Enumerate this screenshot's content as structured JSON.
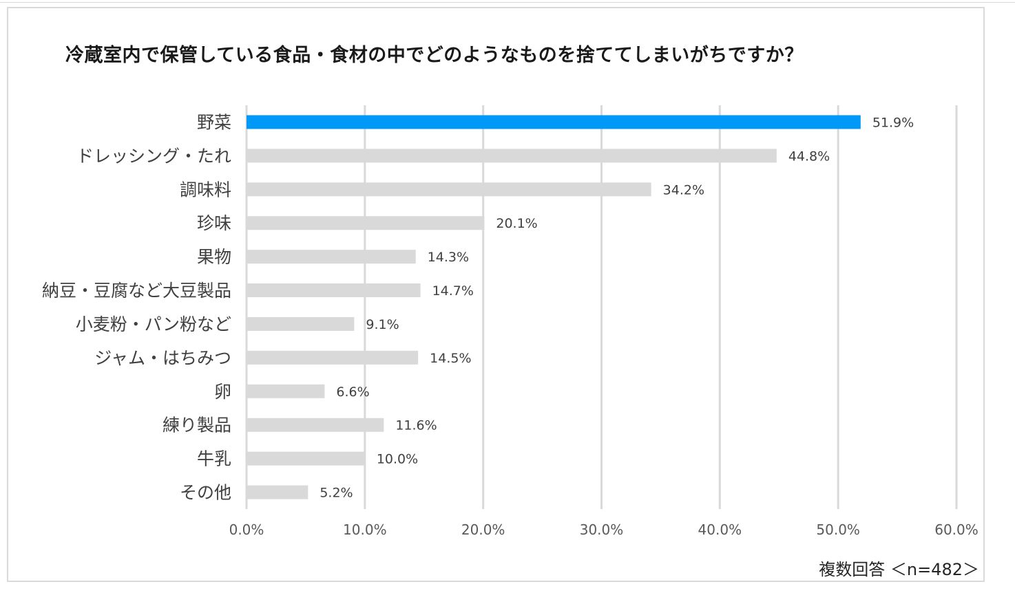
{
  "chart_data": {
    "type": "bar",
    "orientation": "horizontal",
    "title": "冷蔵室内で保管している食品・食材の中でどのようなものを捨ててしまいがちですか？",
    "categories": [
      "野菜",
      "ドレッシング・たれ",
      "調味料",
      "珍味",
      "果物",
      "納豆・豆腐など大豆製品",
      "小麦粉・パン粉など",
      "ジャム・はちみつ",
      "卵",
      "練り製品",
      "牛乳",
      "その他"
    ],
    "values": [
      51.9,
      44.8,
      34.2,
      20.1,
      14.3,
      14.7,
      9.1,
      14.5,
      6.6,
      11.6,
      10.0,
      5.2
    ],
    "value_labels": [
      "51.9%",
      "44.8%",
      "34.2%",
      "20.1%",
      "14.3%",
      "14.7%",
      "9.1%",
      "14.5%",
      "6.6%",
      "11.6%",
      "10.0%",
      "5.2%"
    ],
    "x_ticks": [
      "0.0%",
      "10.0%",
      "20.0%",
      "30.0%",
      "40.0%",
      "50.0%",
      "60.0%"
    ],
    "xlim": [
      0,
      60
    ],
    "grid": true,
    "highlight_index": 0,
    "colors": {
      "highlight": "#0099f7",
      "bar": "#d9d9d9",
      "grid": "#d9d9d9"
    },
    "note": "複数回答 ＜n=482＞"
  }
}
